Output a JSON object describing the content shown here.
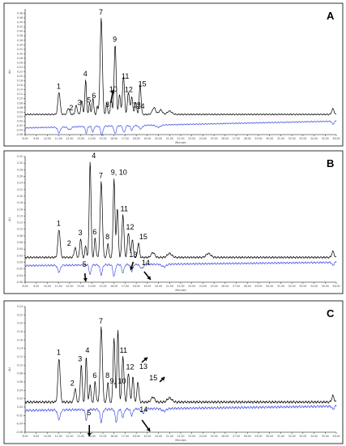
{
  "chart_data": [
    {
      "type": "line",
      "panel": "A",
      "xlabel": "Minutes",
      "ylabel": "AU",
      "xlim": [
        8.0,
        36.0
      ],
      "ylim": [
        -0.06,
        0.5
      ],
      "x_ticks": [
        "8.00",
        "9.00",
        "10.00",
        "11.00",
        "12.00",
        "13.00",
        "14.00",
        "15.00",
        "16.00",
        "17.00",
        "18.00",
        "19.00",
        "20.00",
        "21.00",
        "22.00",
        "23.00",
        "24.00",
        "25.00",
        "26.00",
        "27.00",
        "28.00",
        "29.00",
        "30.00",
        "31.00",
        "32.00",
        "33.00",
        "34.00",
        "35.00",
        "36.00"
      ],
      "y_ticks": [
        "-0.06",
        "-0.04",
        "-0.02",
        "0.00",
        "0.02",
        "0.04",
        "0.06",
        "0.08",
        "0.10",
        "0.12",
        "0.14",
        "0.16",
        "0.18",
        "0.20",
        "0.22",
        "0.24",
        "0.26",
        "0.28",
        "0.30",
        "0.32",
        "0.34",
        "0.36",
        "0.38",
        "0.40",
        "0.42",
        "0.44",
        "0.46",
        "0.48"
      ],
      "series": [
        {
          "color": "#000000",
          "baseline": 0.03,
          "drift": 0.0,
          "peaks": [
            [
              11.05,
              0.1,
              0.1
            ],
            [
              11.9,
              0.028,
              0.1
            ],
            [
              12.6,
              0.04,
              0.09
            ],
            [
              13.1,
              0.06,
              0.08
            ],
            [
              13.45,
              0.155,
              0.07
            ],
            [
              13.8,
              0.055,
              0.06
            ],
            [
              14.1,
              0.075,
              0.07
            ],
            [
              14.5,
              0.035,
              0.06
            ],
            [
              14.85,
              0.43,
              0.1
            ],
            [
              15.35,
              0.05,
              0.07
            ],
            [
              15.75,
              0.07,
              0.07
            ],
            [
              16.1,
              0.31,
              0.09
            ],
            [
              16.5,
              0.09,
              0.08
            ],
            [
              16.85,
              0.17,
              0.09
            ],
            [
              17.3,
              0.1,
              0.09
            ],
            [
              17.6,
              0.08,
              0.08
            ],
            [
              17.95,
              0.055,
              0.08
            ],
            [
              18.35,
              0.135,
              0.08
            ],
            [
              19.6,
              0.03,
              0.15
            ],
            [
              20.2,
              0.02,
              0.15
            ],
            [
              21.0,
              0.015,
              0.2
            ],
            [
              35.7,
              0.025,
              0.1
            ]
          ]
        },
        {
          "color": "#2a3ee0",
          "baseline": -0.03,
          "drift": 0.03,
          "dips": [
            [
              11.05,
              0.025,
              0.12
            ],
            [
              12.0,
              0.012,
              0.15
            ],
            [
              13.5,
              0.03,
              0.08
            ],
            [
              14.1,
              0.025,
              0.08
            ],
            [
              14.9,
              0.04,
              0.1
            ],
            [
              16.1,
              0.035,
              0.1
            ],
            [
              16.9,
              0.03,
              0.1
            ],
            [
              17.6,
              0.02,
              0.1
            ],
            [
              18.4,
              0.015,
              0.15
            ],
            [
              20.0,
              0.01,
              0.2
            ],
            [
              35.7,
              0.015,
              0.08
            ]
          ]
        }
      ],
      "annotations": [
        {
          "label": "1",
          "x": 11.05
        },
        {
          "label": "2",
          "x": 12.4
        },
        {
          "label": "3",
          "x": 13.0
        },
        {
          "label": "4",
          "x": 13.45
        },
        {
          "label": "5",
          "x": 13.85
        },
        {
          "label": "6",
          "x": 14.15
        },
        {
          "label": "7",
          "x": 14.85
        },
        {
          "label": "8",
          "x": 15.45
        },
        {
          "label": "9",
          "x": 16.1
        },
        {
          "label": "10",
          "x": 16.0
        },
        {
          "label": "11",
          "x": 16.9
        },
        {
          "label": "12",
          "x": 17.25
        },
        {
          "label": "13",
          "x": 17.75
        },
        {
          "label": "14",
          "x": 18.1
        },
        {
          "label": "15",
          "x": 18.4
        }
      ]
    },
    {
      "type": "line",
      "panel": "B",
      "xlabel": "Minutes",
      "ylabel": "AU",
      "xlim": [
        8.0,
        36.0
      ],
      "ylim": [
        -0.06,
        0.32
      ],
      "x_ticks": [
        "8.00",
        "9.00",
        "10.00",
        "11.00",
        "12.00",
        "13.00",
        "14.00",
        "15.00",
        "16.00",
        "17.00",
        "18.00",
        "19.00",
        "20.00",
        "21.00",
        "22.00",
        "23.00",
        "24.00",
        "25.00",
        "26.00",
        "27.00",
        "28.00",
        "29.00",
        "30.00",
        "31.00",
        "32.00",
        "33.00",
        "34.00",
        "35.00",
        "36.00"
      ],
      "y_ticks": [
        "-0.06",
        "-0.04",
        "-0.02",
        "0.00",
        "0.02",
        "0.04",
        "0.06",
        "0.08",
        "0.10",
        "0.12",
        "0.14",
        "0.16",
        "0.18",
        "0.20",
        "0.22",
        "0.24",
        "0.26",
        "0.28",
        "0.30",
        "0.32"
      ],
      "series": [
        {
          "color": "#000000",
          "baseline": 0.015,
          "drift": 0.0,
          "peaks": [
            [
              11.05,
              0.085,
              0.1
            ],
            [
              12.5,
              0.03,
              0.09
            ],
            [
              13.0,
              0.058,
              0.08
            ],
            [
              13.45,
              0.035,
              0.07
            ],
            [
              13.85,
              0.29,
              0.08
            ],
            [
              14.3,
              0.06,
              0.07
            ],
            [
              14.85,
              0.23,
              0.1
            ],
            [
              15.45,
              0.045,
              0.07
            ],
            [
              16.0,
              0.24,
              0.08
            ],
            [
              16.3,
              0.15,
              0.08
            ],
            [
              16.8,
              0.13,
              0.09
            ],
            [
              17.3,
              0.075,
              0.09
            ],
            [
              17.65,
              0.055,
              0.08
            ],
            [
              18.2,
              0.045,
              0.08
            ],
            [
              19.5,
              0.015,
              0.15
            ],
            [
              21.0,
              0.012,
              0.2
            ],
            [
              24.5,
              0.012,
              0.2
            ],
            [
              35.7,
              0.018,
              0.1
            ]
          ]
        },
        {
          "color": "#2a3ee0",
          "baseline": -0.01,
          "drift": 0.01,
          "dips": [
            [
              11.05,
              0.02,
              0.12
            ],
            [
              13.85,
              0.03,
              0.08
            ],
            [
              14.85,
              0.03,
              0.1
            ],
            [
              16.0,
              0.035,
              0.1
            ],
            [
              16.8,
              0.025,
              0.1
            ],
            [
              17.6,
              0.02,
              0.1
            ],
            [
              18.5,
              0.012,
              0.15
            ],
            [
              20.5,
              0.008,
              0.2
            ],
            [
              35.7,
              0.01,
              0.08
            ]
          ]
        }
      ],
      "annotations": [
        {
          "label": "1",
          "x": 11.05
        },
        {
          "label": "2",
          "x": 12.5
        },
        {
          "label": "3",
          "x": 13.0
        },
        {
          "label": "4",
          "x": 13.85
        },
        {
          "label": "5",
          "x": 13.45
        },
        {
          "label": "6",
          "x": 14.3
        },
        {
          "label": "7",
          "x": 14.85
        },
        {
          "label": "8",
          "x": 15.45
        },
        {
          "label": "9, 10",
          "x": 16.0
        },
        {
          "label": "11",
          "x": 16.8
        },
        {
          "label": "12",
          "x": 17.3
        },
        {
          "label": "13",
          "x": 17.65
        },
        {
          "label": "14",
          "x": 18.2
        },
        {
          "label": "15",
          "x": 18.2
        }
      ]
    },
    {
      "type": "line",
      "panel": "C",
      "xlabel": "Minutes",
      "ylabel": "AU",
      "xlim": [
        8.0,
        36.0
      ],
      "ylim": [
        -0.06,
        0.24
      ],
      "x_ticks": [
        "8.00",
        "9.00",
        "10.00",
        "11.00",
        "12.00",
        "13.00",
        "14.00",
        "15.00",
        "16.00",
        "17.00",
        "18.00",
        "19.00",
        "20.00",
        "21.00",
        "22.00",
        "23.00",
        "24.00",
        "25.00",
        "26.00",
        "27.00",
        "28.00",
        "29.00",
        "30.00",
        "31.00",
        "32.00",
        "33.00",
        "34.00",
        "35.00",
        "36.00"
      ],
      "y_ticks": [
        "-0.06",
        "-0.04",
        "-0.02",
        "0.00",
        "0.02",
        "0.04",
        "0.06",
        "0.08",
        "0.10",
        "0.12",
        "0.14",
        "0.16",
        "0.18",
        "0.20",
        "0.22",
        "0.24"
      ],
      "series": [
        {
          "color": "#000000",
          "baseline": 0.012,
          "drift": 0.0,
          "peaks": [
            [
              11.05,
              0.105,
              0.1
            ],
            [
              12.5,
              0.032,
              0.09
            ],
            [
              13.05,
              0.09,
              0.08
            ],
            [
              13.5,
              0.11,
              0.07
            ],
            [
              13.85,
              0.042,
              0.07
            ],
            [
              14.3,
              0.05,
              0.07
            ],
            [
              14.85,
              0.18,
              0.1
            ],
            [
              15.45,
              0.05,
              0.07
            ],
            [
              16.0,
              0.155,
              0.08
            ],
            [
              16.35,
              0.17,
              0.08
            ],
            [
              16.8,
              0.11,
              0.09
            ],
            [
              17.3,
              0.07,
              0.09
            ],
            [
              17.7,
              0.06,
              0.08
            ],
            [
              18.15,
              0.05,
              0.08
            ],
            [
              19.5,
              0.012,
              0.15
            ],
            [
              21.0,
              0.01,
              0.2
            ],
            [
              35.7,
              0.015,
              0.1
            ]
          ]
        },
        {
          "color": "#2a3ee0",
          "baseline": -0.008,
          "drift": 0.01,
          "dips": [
            [
              11.05,
              0.022,
              0.12
            ],
            [
              13.5,
              0.025,
              0.08
            ],
            [
              14.85,
              0.03,
              0.1
            ],
            [
              16.2,
              0.03,
              0.1
            ],
            [
              16.8,
              0.02,
              0.1
            ],
            [
              17.6,
              0.015,
              0.1
            ],
            [
              18.6,
              0.01,
              0.15
            ],
            [
              20.5,
              0.006,
              0.2
            ],
            [
              35.7,
              0.008,
              0.08
            ]
          ]
        }
      ],
      "annotations": [
        {
          "label": "1",
          "x": 11.05
        },
        {
          "label": "2",
          "x": 12.5
        },
        {
          "label": "3",
          "x": 13.05
        },
        {
          "label": "4",
          "x": 13.5
        },
        {
          "label": "5",
          "x": 13.85
        },
        {
          "label": "6",
          "x": 14.3
        },
        {
          "label": "7",
          "x": 14.85
        },
        {
          "label": "8",
          "x": 15.45
        },
        {
          "label": "9, 10",
          "x": 16.2
        },
        {
          "label": "11",
          "x": 16.8
        },
        {
          "label": "12",
          "x": 17.3
        },
        {
          "label": "13",
          "x": 17.7
        },
        {
          "label": "14",
          "x": 18.15
        },
        {
          "label": "15",
          "x": 18.15
        }
      ]
    }
  ]
}
